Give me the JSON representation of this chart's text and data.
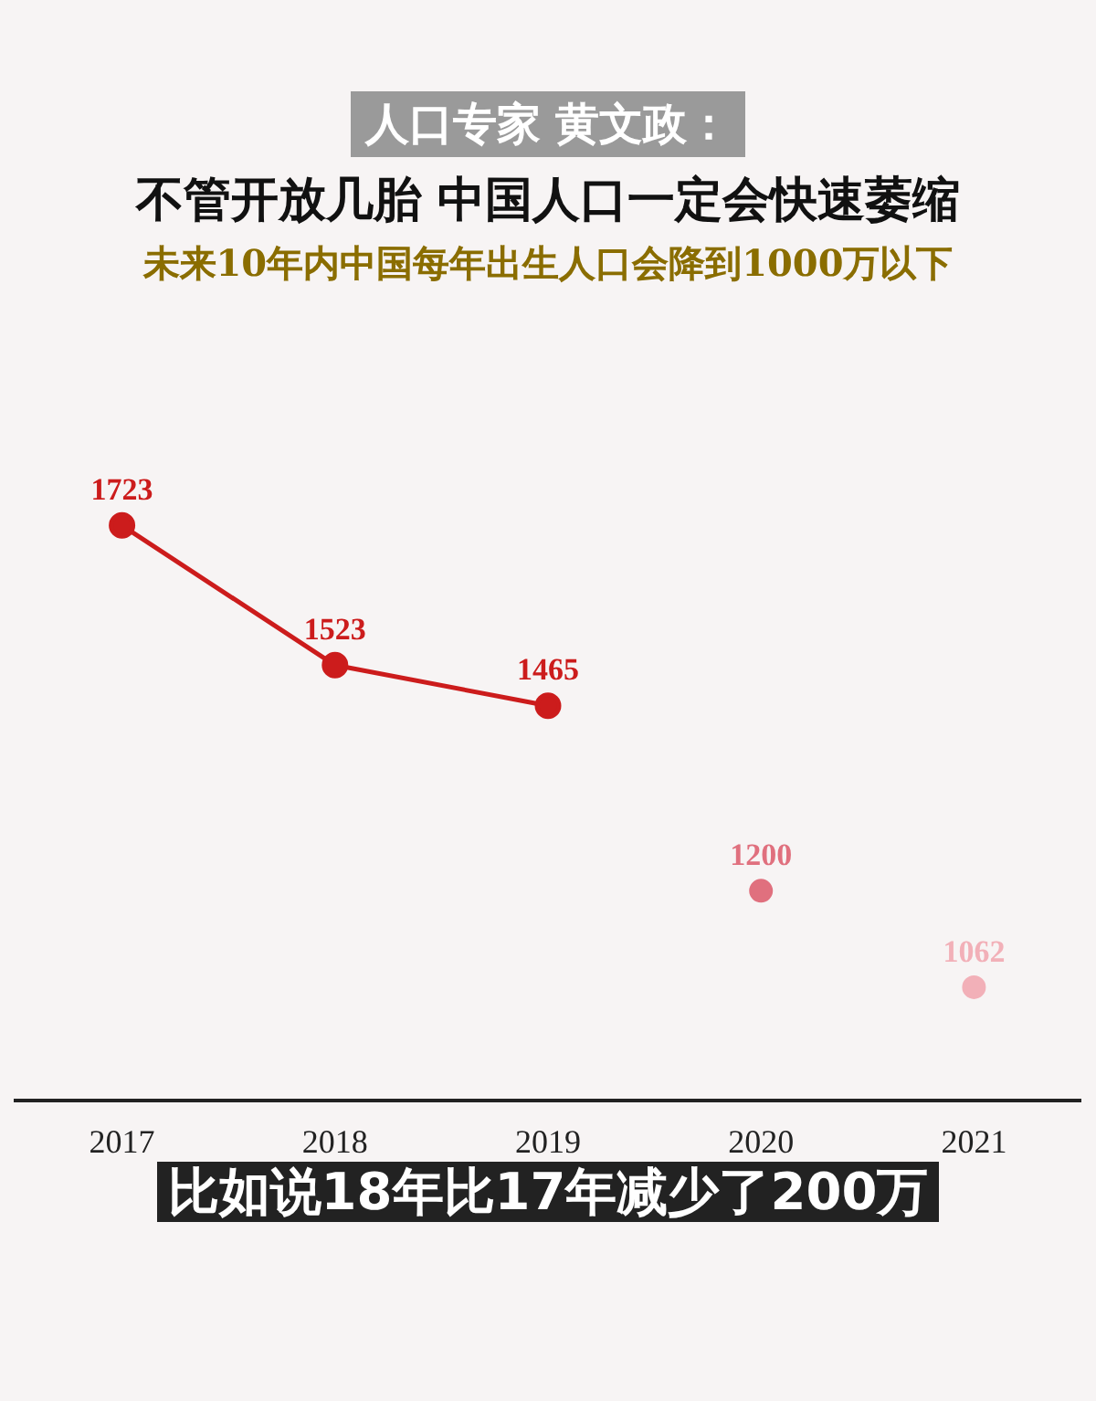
{
  "chart_data": {
    "type": "line",
    "title": "不管开放几胎 中国人口一定会快速萎缩",
    "subtitle": "未来10年内中国每年出生人口会降到1000万以下",
    "annotations": [
      "人口专家 黄文政：",
      "比如说18年比17年减少了200万"
    ],
    "categories": [
      "2017",
      "2018",
      "2019",
      "2020",
      "2021"
    ],
    "series": [
      {
        "color": "#cc1c1c",
        "values": [
          1723,
          1523,
          1465,
          null,
          null
        ]
      },
      {
        "type": "scatter",
        "color": "#e0707e",
        "colors": [
          "#e0707e",
          "#e0707e",
          "#e0707e",
          "#e0707e",
          "#f2b0b8"
        ],
        "values": [
          null,
          null,
          null,
          1200,
          1062
        ]
      }
    ],
    "data_labels": true,
    "marker": "circle",
    "grid": false,
    "legend": false
  }
}
